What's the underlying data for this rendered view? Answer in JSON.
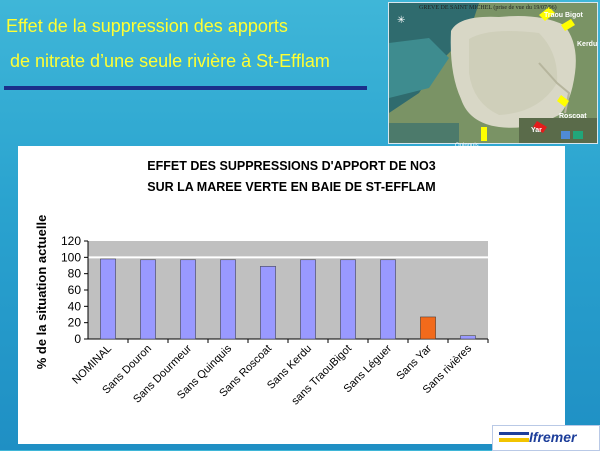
{
  "slide": {
    "title_line1": "Effet de la suppression des apports",
    "title_line2": "de nitrate d’une seule rivière à St-Efflam"
  },
  "photo": {
    "caption": "GREVE DE SAINT MICHEL (prise de vue du 19/07/96)",
    "labels": [
      "Traou Bigot",
      "Kerdu",
      "Roscoat",
      "Yar",
      "Quinquis"
    ]
  },
  "logo": {
    "text": "Ifremer"
  },
  "colors": {
    "bar_default": "#9999ff",
    "bar_highlight": "#f26a1b",
    "plot_area": "#c0c0c0",
    "background": "#2aa3cf",
    "title": "#ffff33"
  },
  "chart_data": {
    "type": "bar",
    "title_line1": "EFFET DES SUPPRESSIONS D'APPORT DE NO3",
    "title_line2": "SUR LA MAREE VERTE EN BAIE DE ST-EFFLAM",
    "ylabel": "% de la situation actuelle",
    "xlabel": "",
    "categories": [
      "NOMINAL",
      "Sans Douron",
      "Sans Dourmeur",
      "Sans Quinquis",
      "Sans Roscoat",
      "Sans Kerdu",
      "sans TraouBigot",
      "Sans Léguer",
      "Sans Yar",
      "Sans rivières"
    ],
    "values": [
      98,
      97,
      97,
      97,
      89,
      97,
      97,
      97,
      27,
      4
    ],
    "highlight_index": 8,
    "ylim": [
      0,
      120
    ],
    "yticks": [
      0,
      20,
      40,
      60,
      80,
      100,
      120
    ],
    "reference_line": 100,
    "grid": false,
    "legend": "none"
  }
}
